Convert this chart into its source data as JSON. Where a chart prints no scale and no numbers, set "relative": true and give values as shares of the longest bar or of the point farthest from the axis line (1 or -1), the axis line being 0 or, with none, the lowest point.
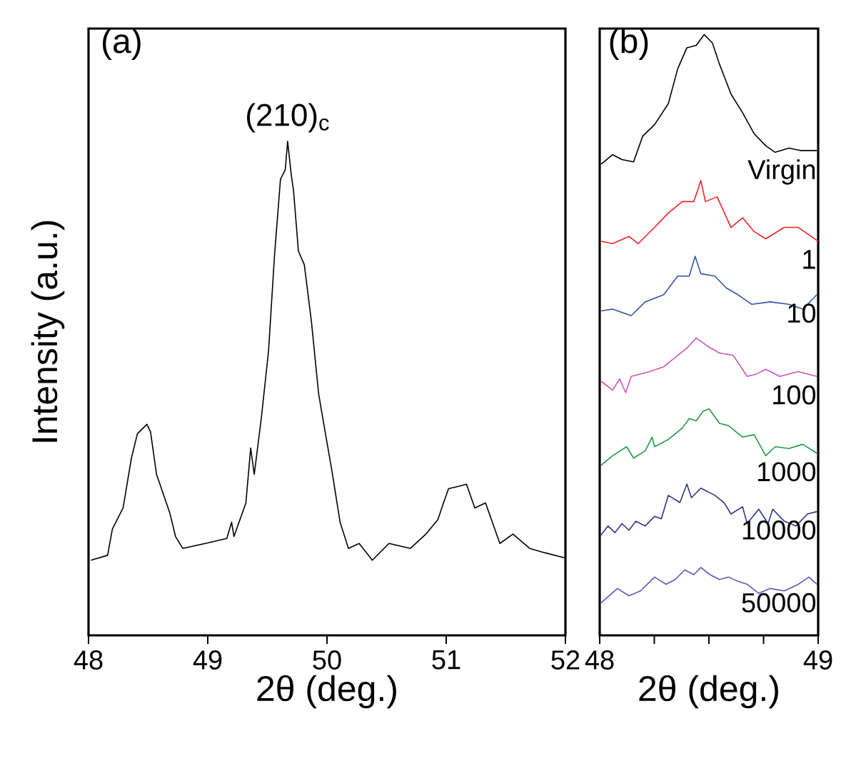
{
  "chart_data": [
    {
      "type": "line",
      "title": "(a)",
      "xlabel": "2θ (deg.)",
      "ylabel": "Intensity (a.u.)",
      "relative": true,
      "xlim": [
        48,
        52
      ],
      "xticks": [
        48,
        49,
        50,
        51,
        52
      ],
      "annotations": [
        {
          "text": "(210)$_{c}$",
          "x": 49.67,
          "y": 1.0
        }
      ],
      "series": [
        {
          "color": "#000000",
          "x": [
            48.02,
            48.16,
            48.2,
            48.29,
            48.36,
            48.41,
            48.49,
            48.52,
            48.57,
            48.68,
            48.73,
            48.79,
            48.98,
            49.16,
            49.2,
            49.22,
            49.32,
            49.36,
            49.39,
            49.45,
            49.51,
            49.56,
            49.61,
            49.65,
            49.67,
            49.7,
            49.72,
            49.76,
            49.81,
            49.87,
            49.93,
            49.97,
            50.04,
            50.11,
            50.18,
            50.27,
            50.38,
            50.52,
            50.7,
            50.83,
            50.93,
            50.97,
            51.02,
            51.11,
            51.17,
            51.24,
            51.33,
            51.45,
            51.56,
            51.7,
            51.83,
            51.99
          ],
          "values": [
            0.152,
            0.162,
            0.215,
            0.258,
            0.359,
            0.408,
            0.427,
            0.412,
            0.326,
            0.249,
            0.2,
            0.176,
            0.186,
            0.196,
            0.229,
            0.2,
            0.268,
            0.379,
            0.326,
            0.441,
            0.576,
            0.769,
            0.923,
            0.942,
            1.0,
            0.933,
            0.899,
            0.778,
            0.75,
            0.634,
            0.489,
            0.432,
            0.335,
            0.229,
            0.176,
            0.186,
            0.152,
            0.186,
            0.176,
            0.205,
            0.234,
            0.263,
            0.297,
            0.302,
            0.306,
            0.258,
            0.268,
            0.186,
            0.205,
            0.176,
            0.167,
            0.157
          ]
        }
      ]
    },
    {
      "type": "line",
      "title": "(b)",
      "xlabel": "2θ (deg.)",
      "relative": true,
      "xlim": [
        48,
        49
      ],
      "xticks": [
        48,
        {
          "value": 48.25,
          "label": null
        },
        {
          "value": 48.5,
          "label": null
        },
        {
          "value": 48.75,
          "label": null
        },
        49
      ],
      "series": [
        {
          "name": "Virgin",
          "color": "#000000",
          "x": [
            48.006,
            48.059,
            48.102,
            48.155,
            48.197,
            48.251,
            48.314,
            48.357,
            48.399,
            48.442,
            48.478,
            48.516,
            48.548,
            48.601,
            48.654,
            48.707,
            48.76,
            48.803,
            48.866,
            48.919,
            48.994
          ],
          "values": [
            0.784,
            0.8,
            0.792,
            0.788,
            0.831,
            0.85,
            0.885,
            0.943,
            0.978,
            0.982,
            1.0,
            0.986,
            0.951,
            0.901,
            0.87,
            0.835,
            0.815,
            0.804,
            0.811,
            0.807,
            0.807
          ]
        },
        {
          "name": "1",
          "color": "#ee2222",
          "x": [
            48.006,
            48.059,
            48.134,
            48.176,
            48.251,
            48.314,
            48.378,
            48.431,
            48.463,
            48.484,
            48.537,
            48.601,
            48.654,
            48.707,
            48.76,
            48.845,
            48.909,
            49.0
          ],
          "values": [
            0.656,
            0.652,
            0.664,
            0.652,
            0.679,
            0.703,
            0.722,
            0.722,
            0.757,
            0.722,
            0.73,
            0.679,
            0.695,
            0.672,
            0.66,
            0.679,
            0.679,
            0.656
          ]
        },
        {
          "name": "10",
          "color": "#3355aa",
          "x": [
            48.006,
            48.059,
            48.144,
            48.208,
            48.293,
            48.357,
            48.41,
            48.437,
            48.463,
            48.527,
            48.58,
            48.633,
            48.696,
            48.781,
            48.866,
            48.93,
            48.994
          ],
          "values": [
            0.54,
            0.543,
            0.532,
            0.555,
            0.567,
            0.598,
            0.598,
            0.631,
            0.602,
            0.598,
            0.578,
            0.567,
            0.551,
            0.555,
            0.551,
            0.543,
            0.567
          ]
        },
        {
          "name": "100",
          "color": "#cc55bb",
          "x": [
            48.006,
            48.059,
            48.091,
            48.119,
            48.144,
            48.229,
            48.293,
            48.357,
            48.399,
            48.442,
            48.495,
            48.548,
            48.611,
            48.675,
            48.718,
            48.76,
            48.824,
            48.909,
            48.994
          ],
          "values": [
            0.423,
            0.408,
            0.427,
            0.404,
            0.431,
            0.439,
            0.447,
            0.466,
            0.478,
            0.495,
            0.481,
            0.47,
            0.466,
            0.431,
            0.435,
            0.443,
            0.431,
            0.439,
            0.431
          ]
        },
        {
          "name": "1000",
          "color": "#229944",
          "x": [
            48.006,
            48.059,
            48.123,
            48.155,
            48.208,
            48.24,
            48.251,
            48.314,
            48.378,
            48.41,
            48.442,
            48.473,
            48.501,
            48.548,
            48.59,
            48.654,
            48.707,
            48.76,
            48.803,
            48.866,
            48.93,
            48.994
          ],
          "values": [
            0.283,
            0.299,
            0.314,
            0.295,
            0.307,
            0.33,
            0.314,
            0.326,
            0.345,
            0.361,
            0.357,
            0.373,
            0.377,
            0.353,
            0.349,
            0.33,
            0.334,
            0.299,
            0.314,
            0.311,
            0.318,
            0.303
          ]
        },
        {
          "name": "10000",
          "color": "#333388",
          "x": [
            48.006,
            48.038,
            48.07,
            48.102,
            48.134,
            48.166,
            48.208,
            48.251,
            48.282,
            48.314,
            48.367,
            48.399,
            48.42,
            48.463,
            48.527,
            48.569,
            48.601,
            48.654,
            48.675,
            48.728,
            48.771,
            48.792,
            48.845,
            48.898,
            48.951,
            48.994
          ],
          "values": [
            0.167,
            0.182,
            0.171,
            0.186,
            0.175,
            0.19,
            0.182,
            0.198,
            0.194,
            0.233,
            0.221,
            0.252,
            0.229,
            0.245,
            0.233,
            0.221,
            0.202,
            0.214,
            0.186,
            0.21,
            0.186,
            0.21,
            0.19,
            0.182,
            0.202,
            0.206
          ]
        },
        {
          "name": "50000",
          "color": "#6655bb",
          "x": [
            48.006,
            48.081,
            48.134,
            48.187,
            48.251,
            48.304,
            48.346,
            48.389,
            48.431,
            48.463,
            48.505,
            48.548,
            48.59,
            48.633,
            48.675,
            48.728,
            48.781,
            48.845,
            48.909,
            48.958,
            48.994
          ],
          "values": [
            0.054,
            0.078,
            0.066,
            0.074,
            0.097,
            0.085,
            0.093,
            0.109,
            0.101,
            0.113,
            0.101,
            0.093,
            0.097,
            0.09,
            0.085,
            0.07,
            0.078,
            0.074,
            0.085,
            0.097,
            0.085
          ]
        }
      ]
    }
  ]
}
